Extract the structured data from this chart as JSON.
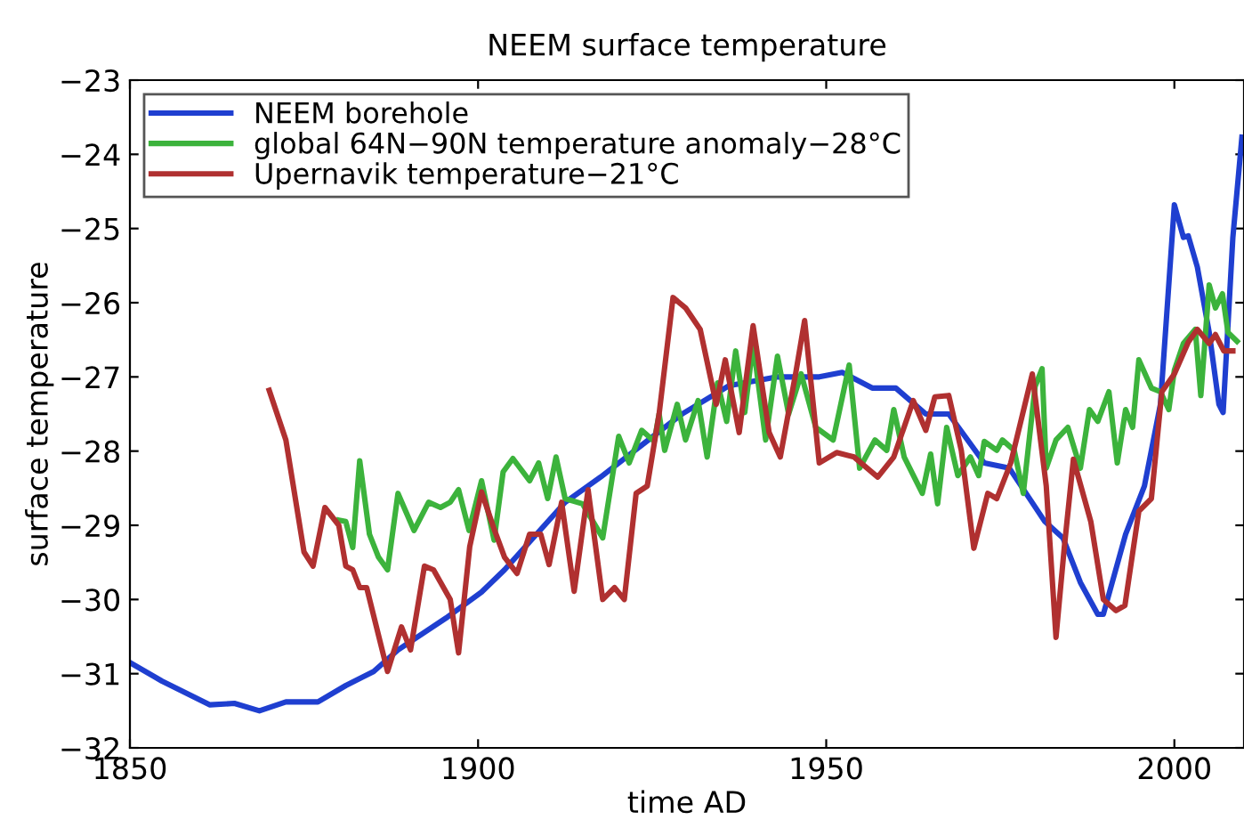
{
  "chart_data": {
    "type": "line",
    "title": "NEEM surface temperature",
    "xlabel": "time AD",
    "ylabel": "surface temperature",
    "xlim": [
      1850,
      2010
    ],
    "xticks": [
      1850,
      1900,
      1950,
      2000
    ],
    "ylim": [
      -32,
      -23
    ],
    "yticks": [
      -32,
      -31,
      -30,
      -29,
      -28,
      -27,
      -26,
      -25,
      -24,
      -23
    ],
    "grid": false,
    "legend": "top left",
    "marker": "none",
    "line_style": "solid",
    "series": [
      {
        "name": "NEEM borehole",
        "color": "#1f3fd0",
        "x": [
          1850,
          1854.6,
          1861.5,
          1865,
          1868.6,
          1872.4,
          1877,
          1881,
          1885,
          1888.5,
          1895.4,
          1900.5,
          1903.8,
          1912.5,
          1917.6,
          1923.5,
          1929.3,
          1936,
          1943,
          1949,
          1952.3,
          1956.6,
          1960,
          1964.3,
          1967.6,
          1972.7,
          1976.3,
          1981.4,
          1984,
          1986.5,
          1989,
          1989.8,
          1993,
          1995.7,
          1998,
          2000,
          2001.3,
          2002,
          2003.3,
          2005,
          2006.4,
          2007,
          2008.4,
          2009.7
        ],
        "values": [
          -30.85,
          -31.1,
          -31.42,
          -31.4,
          -31.5,
          -31.38,
          -31.38,
          -31.16,
          -30.97,
          -30.68,
          -30.25,
          -29.9,
          -29.6,
          -28.69,
          -28.35,
          -27.92,
          -27.5,
          -27.12,
          -27.0,
          -27.0,
          -26.94,
          -27.15,
          -27.15,
          -27.5,
          -27.5,
          -28.16,
          -28.23,
          -28.95,
          -29.17,
          -29.77,
          -30.2,
          -30.2,
          -29.12,
          -28.47,
          -27.37,
          -24.68,
          -25.12,
          -25.1,
          -25.52,
          -26.4,
          -27.37,
          -27.48,
          -25.12,
          -23.77
        ]
      },
      {
        "name": "global 64N−90N temperature anomaly−28°C",
        "color": "#3cb33c",
        "x": [
          1880,
          1881,
          1882,
          1883,
          1884.4,
          1885.7,
          1887,
          1888.5,
          1890.8,
          1892.9,
          1894.6,
          1896,
          1897.2,
          1898.7,
          1900.5,
          1902.3,
          1903.6,
          1905,
          1907.4,
          1908.7,
          1910,
          1911.2,
          1912.5,
          1915,
          1917.9,
          1920.2,
          1921.7,
          1923.5,
          1925.3,
          1926,
          1926.8,
          1928.6,
          1929.8,
          1931.6,
          1932.9,
          1934.4,
          1935.7,
          1937,
          1938.3,
          1939.5,
          1941.3,
          1943,
          1944.6,
          1946.4,
          1948.5,
          1951,
          1953.3,
          1954.8,
          1957,
          1958.7,
          1959.7,
          1961.2,
          1963.8,
          1965,
          1966,
          1967.3,
          1968.9,
          1970.7,
          1971.9,
          1972.7,
          1974.5,
          1975.3,
          1977,
          1978.3,
          1980,
          1981,
          1981.6,
          1983,
          1984.7,
          1986.5,
          1987.8,
          1989,
          1990.6,
          1991.8,
          1993,
          1994,
          1994.9,
          1996.7,
          1998,
          1999.2,
          2000,
          2001.3,
          2003,
          2003.8,
          2005,
          2005.9,
          2006.9,
          2007.7,
          2009
        ],
        "values": [
          -28.93,
          -28.95,
          -29.3,
          -28.13,
          -29.12,
          -29.43,
          -29.6,
          -28.57,
          -29.07,
          -28.69,
          -28.76,
          -28.69,
          -28.52,
          -29.07,
          -28.4,
          -29.2,
          -28.28,
          -28.1,
          -28.4,
          -28.16,
          -28.64,
          -28.08,
          -28.64,
          -28.71,
          -29.17,
          -27.8,
          -28.16,
          -27.72,
          -27.87,
          -27.5,
          -27.99,
          -27.37,
          -27.85,
          -27.32,
          -28.08,
          -27.08,
          -27.6,
          -26.65,
          -27.48,
          -26.55,
          -27.85,
          -26.72,
          -27.5,
          -26.96,
          -27.68,
          -27.85,
          -26.84,
          -28.23,
          -27.85,
          -27.99,
          -27.44,
          -28.08,
          -28.57,
          -28.04,
          -28.71,
          -27.68,
          -28.33,
          -28.08,
          -28.33,
          -27.87,
          -27.99,
          -27.85,
          -27.99,
          -28.57,
          -27.13,
          -26.89,
          -28.23,
          -27.85,
          -27.68,
          -28.23,
          -27.44,
          -27.6,
          -27.2,
          -28.16,
          -27.44,
          -27.68,
          -26.77,
          -27.15,
          -27.2,
          -27.44,
          -26.91,
          -26.55,
          -26.36,
          -27.25,
          -25.76,
          -26.07,
          -25.88,
          -26.4,
          -26.52
        ]
      },
      {
        "name": "Upernavik temperature−21°C",
        "color": "#b03030",
        "x": [
          1870,
          1872.4,
          1875,
          1876.3,
          1878,
          1880,
          1881,
          1882,
          1883,
          1884,
          1887,
          1889,
          1890.3,
          1892.3,
          1893.6,
          1896,
          1897.2,
          1898.8,
          1900.5,
          1902.3,
          1903.8,
          1905.6,
          1907.4,
          1909,
          1910.2,
          1912,
          1913.8,
          1915.8,
          1917.9,
          1919.6,
          1921,
          1922.7,
          1924.3,
          1926,
          1928,
          1929.8,
          1931.9,
          1934.2,
          1935.5,
          1937.5,
          1939.5,
          1941.8,
          1943.4,
          1945.6,
          1946.9,
          1949,
          1951.5,
          1954,
          1957.4,
          1959.7,
          1962.5,
          1964.3,
          1965.6,
          1967.6,
          1969.4,
          1971.2,
          1973.2,
          1974.5,
          1976.5,
          1979.6,
          1981.6,
          1983,
          1984.2,
          1985.5,
          1988,
          1989.8,
          1991.6,
          1992.9,
          1994.9,
          1996.7,
          1998.2,
          2000,
          2002,
          2003.3,
          2005,
          2005.9,
          2007.1,
          2008.4
        ],
        "values": [
          -27.18,
          -27.85,
          -29.36,
          -29.55,
          -28.76,
          -29.0,
          -29.55,
          -29.6,
          -29.84,
          -29.84,
          -30.97,
          -30.37,
          -30.68,
          -29.55,
          -29.6,
          -30.0,
          -30.72,
          -29.29,
          -28.55,
          -29.05,
          -29.43,
          -29.65,
          -29.12,
          -29.12,
          -29.53,
          -28.69,
          -29.89,
          -28.52,
          -30.0,
          -29.84,
          -30.0,
          -28.57,
          -28.47,
          -27.5,
          -25.93,
          -26.07,
          -26.36,
          -27.37,
          -26.77,
          -27.75,
          -26.31,
          -27.75,
          -28.08,
          -26.96,
          -26.24,
          -28.16,
          -28.02,
          -28.08,
          -28.35,
          -28.08,
          -27.32,
          -27.72,
          -27.27,
          -27.25,
          -27.99,
          -29.31,
          -28.57,
          -28.64,
          -28.16,
          -26.96,
          -28.47,
          -30.51,
          -29.29,
          -28.11,
          -28.95,
          -30.0,
          -30.15,
          -30.08,
          -28.81,
          -28.64,
          -27.2,
          -26.96,
          -26.53,
          -26.36,
          -26.55,
          -26.43,
          -26.65,
          -26.65
        ]
      }
    ]
  }
}
